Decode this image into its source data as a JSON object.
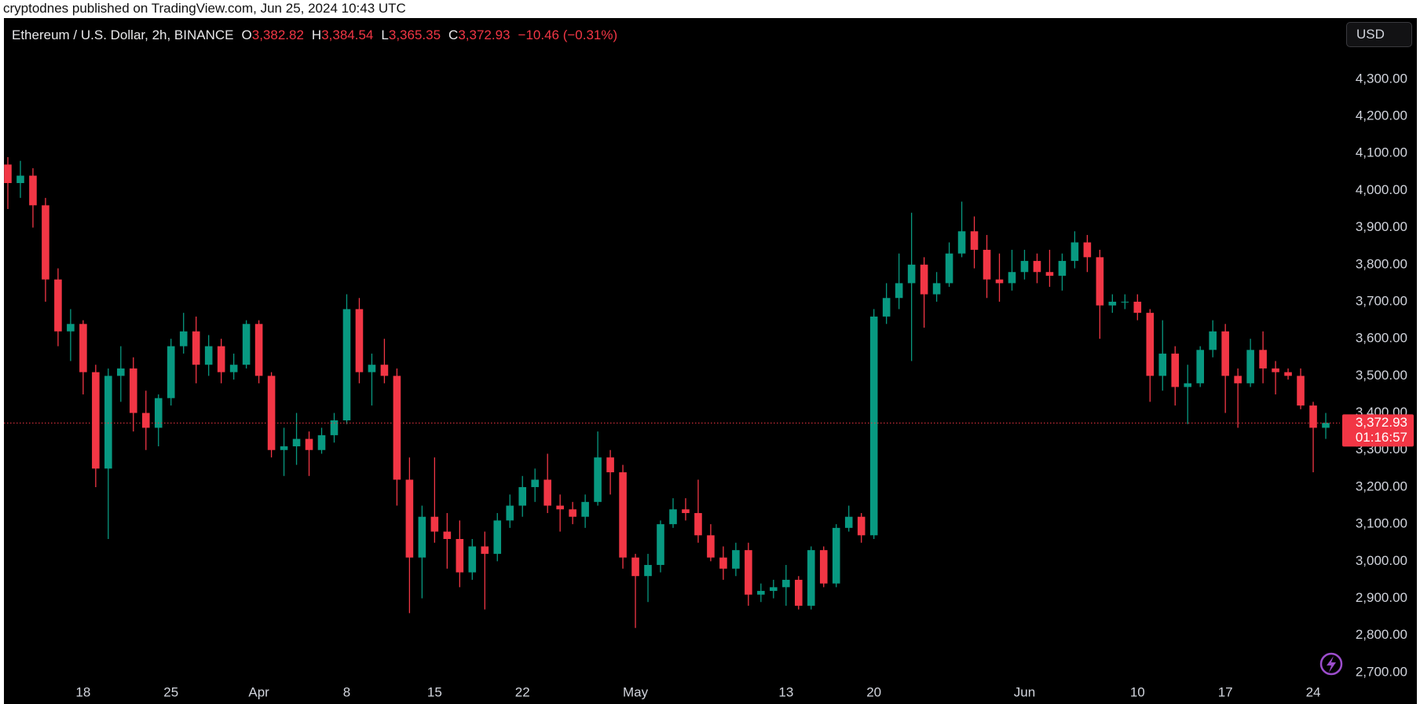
{
  "header": {
    "published": "cryptodnes published on TradingView.com, Jun 25, 2024 10:43 UTC",
    "currency_button": "USD"
  },
  "chart_data": {
    "type": "candlestick",
    "title": "Ethereum / U.S. Dollar, 2h, BINANCE",
    "ohlc_legend": [
      {
        "key": "O",
        "value": "3,382.82"
      },
      {
        "key": "H",
        "value": "3,384.54"
      },
      {
        "key": "L",
        "value": "3,365.35"
      },
      {
        "key": "C",
        "value": "3,372.93"
      }
    ],
    "change": "−10.46 (−0.31%)",
    "categories": [
      null,
      null,
      null,
      null,
      null,
      null,
      "18",
      null,
      null,
      null,
      null,
      null,
      null,
      "25",
      null,
      null,
      null,
      null,
      null,
      null,
      "Apr",
      null,
      null,
      null,
      null,
      null,
      null,
      "8",
      null,
      null,
      null,
      null,
      null,
      null,
      "15",
      null,
      null,
      null,
      null,
      null,
      null,
      "22",
      null,
      null,
      null,
      null,
      null,
      null,
      null,
      null,
      "May",
      null,
      null,
      null,
      null,
      null,
      null,
      null,
      null,
      null,
      null,
      null,
      "13",
      null,
      null,
      null,
      null,
      null,
      null,
      "20",
      null,
      null,
      null,
      null,
      null,
      null,
      null,
      null,
      null,
      null,
      null,
      "Jun",
      null,
      null,
      null,
      null,
      null,
      null,
      null,
      null,
      "10",
      null,
      null,
      null,
      null,
      null,
      null,
      "17",
      null,
      null,
      null,
      null,
      null,
      null,
      "24",
      null
    ],
    "open": [
      4070,
      4020,
      4040,
      3960,
      3760,
      3620,
      3640,
      3510,
      3250,
      3500,
      3520,
      3400,
      3360,
      3440,
      3580,
      3620,
      3530,
      3580,
      3510,
      3530,
      3640,
      3500,
      3300,
      3310,
      3330,
      3300,
      3340,
      3380,
      3680,
      3510,
      3530,
      3500,
      3220,
      3010,
      3120,
      3080,
      3060,
      2970,
      3040,
      3020,
      3110,
      3150,
      3200,
      3220,
      3150,
      3140,
      3120,
      3160,
      3280,
      3240,
      3010,
      2960,
      2990,
      3100,
      3140,
      3130,
      3070,
      3010,
      2980,
      3030,
      2910,
      2920,
      2930,
      2950,
      2880,
      3030,
      2940,
      3090,
      3120,
      3070,
      3660,
      3710,
      3750,
      3800,
      3720,
      3750,
      3830,
      3890,
      3840,
      3760,
      3750,
      3780,
      3810,
      3780,
      3770,
      3810,
      3860,
      3820,
      3690,
      3700,
      3700,
      3670,
      3500,
      3560,
      3470,
      3480,
      3570,
      3620,
      3500,
      3480,
      3570,
      3520,
      3510,
      3500,
      3420,
      3360
    ],
    "high": [
      4090,
      4080,
      4060,
      3980,
      3790,
      3680,
      3650,
      3530,
      3520,
      3580,
      3550,
      3460,
      3450,
      3600,
      3670,
      3660,
      3610,
      3600,
      3560,
      3650,
      3650,
      3510,
      3360,
      3400,
      3350,
      3360,
      3400,
      3720,
      3710,
      3560,
      3600,
      3520,
      3280,
      3150,
      3280,
      3130,
      3110,
      3060,
      3080,
      3130,
      3180,
      3230,
      3250,
      3290,
      3180,
      3160,
      3180,
      3350,
      3300,
      3260,
      3020,
      3020,
      3110,
      3170,
      3170,
      3220,
      3100,
      3040,
      3050,
      3050,
      2940,
      2950,
      2990,
      2960,
      3040,
      3040,
      3100,
      3150,
      3130,
      3680,
      3750,
      3830,
      3940,
      3820,
      3780,
      3860,
      3970,
      3930,
      3880,
      3830,
      3840,
      3840,
      3830,
      3840,
      3830,
      3890,
      3880,
      3840,
      3720,
      3720,
      3720,
      3680,
      3650,
      3580,
      3530,
      3580,
      3650,
      3640,
      3520,
      3600,
      3620,
      3540,
      3520,
      3520,
      3430,
      3400
    ],
    "low": [
      3950,
      3980,
      3900,
      3700,
      3580,
      3540,
      3450,
      3200,
      3060,
      3430,
      3350,
      3300,
      3310,
      3420,
      3560,
      3480,
      3500,
      3480,
      3490,
      3520,
      3480,
      3280,
      3230,
      3260,
      3230,
      3290,
      3320,
      3370,
      3480,
      3420,
      3480,
      3150,
      2860,
      2900,
      3050,
      2980,
      2930,
      2950,
      2870,
      3000,
      3090,
      3120,
      3160,
      3130,
      3080,
      3100,
      3090,
      3150,
      3180,
      2980,
      2820,
      2890,
      2970,
      3090,
      3110,
      3050,
      3000,
      2950,
      2960,
      2880,
      2890,
      2900,
      2880,
      2870,
      2870,
      2930,
      2930,
      3080,
      3050,
      3060,
      3640,
      3680,
      3540,
      3630,
      3700,
      3740,
      3820,
      3790,
      3710,
      3700,
      3730,
      3760,
      3750,
      3740,
      3730,
      3790,
      3780,
      3600,
      3670,
      3680,
      3650,
      3430,
      3460,
      3420,
      3370,
      3470,
      3550,
      3400,
      3360,
      3470,
      3480,
      3450,
      3490,
      3410,
      3240,
      3330
    ],
    "close": [
      4020,
      4040,
      3960,
      3760,
      3620,
      3640,
      3510,
      3250,
      3500,
      3520,
      3400,
      3360,
      3440,
      3580,
      3620,
      3530,
      3580,
      3510,
      3530,
      3640,
      3500,
      3300,
      3310,
      3330,
      3300,
      3340,
      3380,
      3680,
      3510,
      3530,
      3500,
      3220,
      3010,
      3120,
      3080,
      3060,
      2970,
      3040,
      3020,
      3110,
      3150,
      3200,
      3220,
      3150,
      3140,
      3120,
      3160,
      3280,
      3240,
      3010,
      2960,
      2990,
      3100,
      3140,
      3130,
      3070,
      3010,
      2980,
      3030,
      2910,
      2920,
      2930,
      2950,
      2880,
      3030,
      2940,
      3090,
      3120,
      3070,
      3660,
      3710,
      3750,
      3800,
      3720,
      3750,
      3830,
      3890,
      3840,
      3760,
      3750,
      3780,
      3810,
      3780,
      3770,
      3810,
      3860,
      3820,
      3690,
      3700,
      3700,
      3670,
      3500,
      3560,
      3470,
      3480,
      3570,
      3620,
      3500,
      3480,
      3570,
      3520,
      3510,
      3500,
      3420,
      3360,
      3373
    ],
    "up_color": "#089981",
    "down_color": "#f23645",
    "ylim": [
      2615,
      4465
    ],
    "yticks": [
      {
        "value": 2700,
        "label": "2,700.00"
      },
      {
        "value": 2800,
        "label": "2,800.00"
      },
      {
        "value": 2900,
        "label": "2,900.00"
      },
      {
        "value": 3000,
        "label": "3,000.00"
      },
      {
        "value": 3100,
        "label": "3,100.00"
      },
      {
        "value": 3200,
        "label": "3,200.00"
      },
      {
        "value": 3300,
        "label": "3,300.00"
      },
      {
        "value": 3400,
        "label": "3,400.00"
      },
      {
        "value": 3500,
        "label": "3,500.00"
      },
      {
        "value": 3600,
        "label": "3,600.00"
      },
      {
        "value": 3700,
        "label": "3,700.00"
      },
      {
        "value": 3800,
        "label": "3,800.00"
      },
      {
        "value": 3900,
        "label": "3,900.00"
      },
      {
        "value": 4000,
        "label": "4,000.00"
      },
      {
        "value": 4100,
        "label": "4,100.00"
      },
      {
        "value": 4200,
        "label": "4,200.00"
      },
      {
        "value": 4300,
        "label": "4,300.00"
      }
    ],
    "grid": false,
    "last_price": {
      "value": 3372.93,
      "label": "3,372.93"
    },
    "countdown": "01:16:57"
  }
}
